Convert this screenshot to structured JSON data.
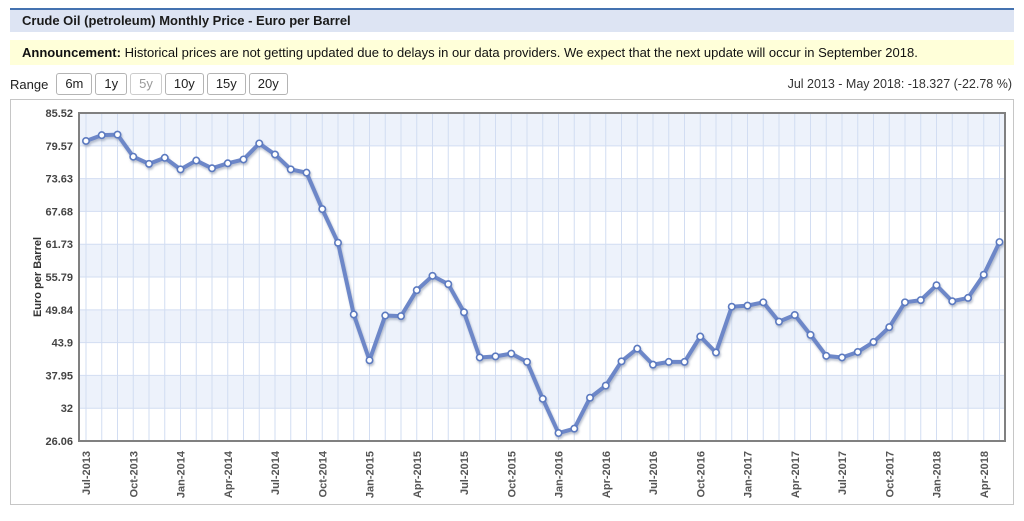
{
  "header": {
    "title": "Crude Oil (petroleum) Monthly Price - Euro per Barrel",
    "period_summary": "Jul 2013 - May 2018: -18.327 (-22.78 %)"
  },
  "announcement": {
    "label": "Announcement:",
    "text": "Historical prices are not getting updated due to delays in our data providers. We expect that the next update will occur in September 2018."
  },
  "range_selector": {
    "label": "Range",
    "options": [
      {
        "label": "6m",
        "active": false
      },
      {
        "label": "1y",
        "active": false
      },
      {
        "label": "5y",
        "active": true
      },
      {
        "label": "10y",
        "active": false
      },
      {
        "label": "15y",
        "active": false
      },
      {
        "label": "20y",
        "active": false
      }
    ]
  },
  "chart_data": {
    "type": "line",
    "title": "Crude Oil (petroleum) Monthly Price - Euro per Barrel",
    "xlabel": "",
    "ylabel": "Euro per Barrel",
    "ylim": [
      26.06,
      85.52
    ],
    "y_ticks": [
      85.52,
      79.57,
      73.63,
      67.68,
      61.73,
      55.79,
      49.84,
      43.9,
      37.95,
      32,
      26.06
    ],
    "x_tick_every": 3,
    "x_tick_labels": [
      "Jul-2013",
      "Oct-2013",
      "Jan-2014",
      "Apr-2014",
      "Jul-2014",
      "Oct-2014",
      "Jan-2015",
      "Apr-2015",
      "Jul-2015",
      "Oct-2015",
      "Jan-2016",
      "Apr-2016",
      "Jul-2016",
      "Oct-2016",
      "Jan-2017",
      "Apr-2017",
      "Jul-2017",
      "Oct-2017",
      "Jan-2018",
      "Apr-2018"
    ],
    "categories": [
      "Jul-2013",
      "Aug-2013",
      "Sep-2013",
      "Oct-2013",
      "Nov-2013",
      "Dec-2013",
      "Jan-2014",
      "Feb-2014",
      "Mar-2014",
      "Apr-2014",
      "May-2014",
      "Jun-2014",
      "Jul-2014",
      "Aug-2014",
      "Sep-2014",
      "Oct-2014",
      "Nov-2014",
      "Dec-2014",
      "Jan-2015",
      "Feb-2015",
      "Mar-2015",
      "Apr-2015",
      "May-2015",
      "Jun-2015",
      "Jul-2015",
      "Aug-2015",
      "Sep-2015",
      "Oct-2015",
      "Nov-2015",
      "Dec-2015",
      "Jan-2016",
      "Feb-2016",
      "Mar-2016",
      "Apr-2016",
      "May-2016",
      "Jun-2016",
      "Jul-2016",
      "Aug-2016",
      "Sep-2016",
      "Oct-2016",
      "Nov-2016",
      "Dec-2016",
      "Jan-2017",
      "Feb-2017",
      "Mar-2017",
      "Apr-2017",
      "May-2017",
      "Jun-2017",
      "Jul-2017",
      "Aug-2017",
      "Sep-2017",
      "Oct-2017",
      "Nov-2017",
      "Dec-2017",
      "Jan-2018",
      "Feb-2018",
      "Mar-2018",
      "Apr-2018",
      "May-2018"
    ],
    "values": [
      80.45,
      81.5,
      81.6,
      77.6,
      76.3,
      77.4,
      75.3,
      76.9,
      75.5,
      76.4,
      77.1,
      80.0,
      78.0,
      75.3,
      74.7,
      68.1,
      62.0,
      49.0,
      40.7,
      48.8,
      48.7,
      53.4,
      56.0,
      54.5,
      49.4,
      41.2,
      41.4,
      41.9,
      40.4,
      33.7,
      27.5,
      28.3,
      33.9,
      36.1,
      40.5,
      42.8,
      39.9,
      40.4,
      40.4,
      45.0,
      42.1,
      50.4,
      50.6,
      51.2,
      47.7,
      48.9,
      45.3,
      41.5,
      41.2,
      42.2,
      44.0,
      46.7,
      51.2,
      51.6,
      54.3,
      51.4,
      52.0,
      56.2,
      62.12
    ],
    "grid": true,
    "legend": "none",
    "colors": {
      "line": "#6d87c8",
      "marker_fill": "#ffffff",
      "marker_stroke": "#5b7ac0",
      "band_light": "#edf2fb",
      "band_white": "#ffffff",
      "gridline": "#d2ddf2",
      "plot_border": "#808080"
    }
  }
}
